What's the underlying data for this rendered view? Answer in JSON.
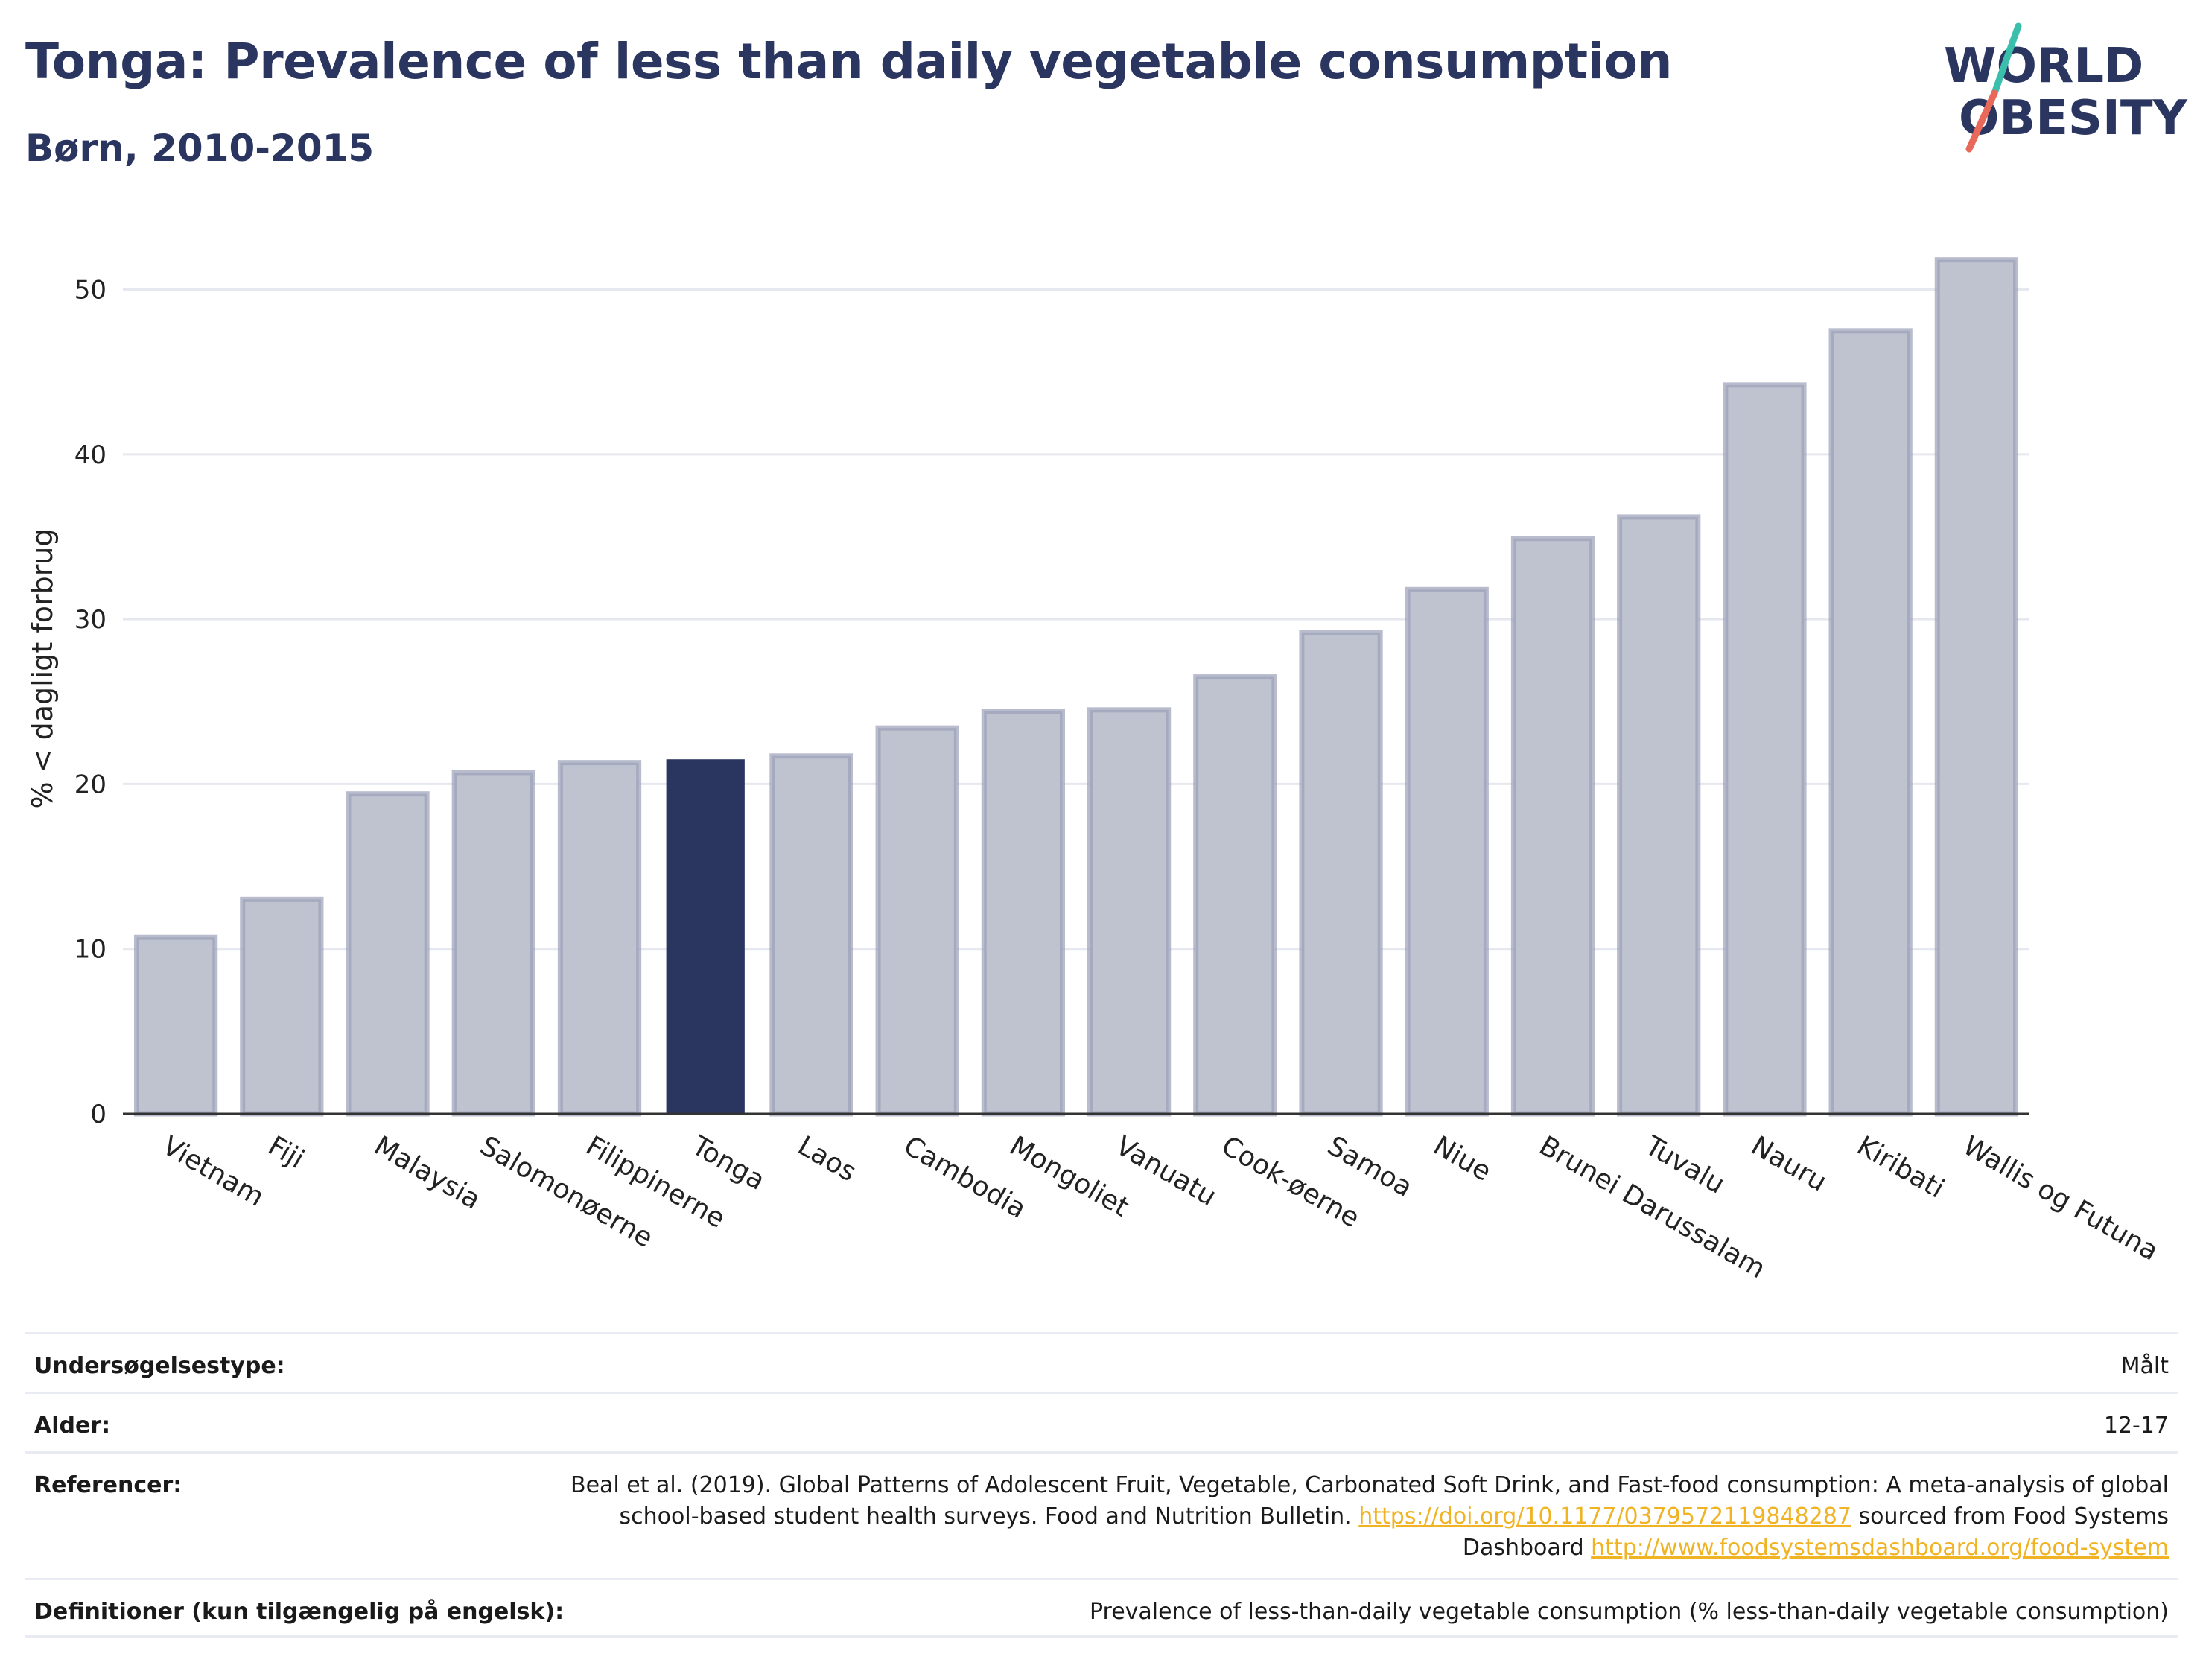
{
  "header": {
    "title": "Tonga: Prevalence of less than daily vegetable consumption",
    "subtitle": "Børn, 2010-2015"
  },
  "logo": {
    "line1": "WORLD",
    "line2": "OBESITY",
    "accent_colors": [
      "#3bbfad",
      "#e8685a"
    ]
  },
  "colors": {
    "bar": "#bfc3d0",
    "bar_stroke": "#9aa0b8",
    "highlight": "#2a3560",
    "grid": "#e6e8ef",
    "axis": "#333333"
  },
  "chart_data": {
    "type": "bar",
    "categories": [
      "Vietnam",
      "Fiji",
      "Malaysia",
      "Salomonøerne",
      "Filippinerne",
      "Tonga",
      "Laos",
      "Cambodia",
      "Mongoliet",
      "Vanuatu",
      "Cook-øerne",
      "Samoa",
      "Niue",
      "Brunei Darussalam",
      "Tuvalu",
      "Nauru",
      "Kiribati",
      "Wallis og Futuna"
    ],
    "values": [
      10.7,
      13.0,
      19.4,
      20.7,
      21.3,
      21.5,
      21.7,
      23.4,
      24.4,
      24.5,
      26.5,
      29.2,
      31.8,
      34.9,
      36.2,
      44.2,
      47.5,
      51.8
    ],
    "highlight": "Tonga",
    "ylabel": "% < dagligt forbrug",
    "xlabel": "",
    "ylim": [
      0,
      54
    ],
    "yticks": [
      0,
      10,
      20,
      30,
      40,
      50
    ],
    "grid": true
  },
  "table": {
    "rows": [
      {
        "label": "Undersøgelsestype:",
        "value": "Målt"
      },
      {
        "label": "Alder:",
        "value": "12-17"
      },
      {
        "label": "Referencer:",
        "value": "Beal et al. (2019). Global Patterns of Adolescent Fruit, Vegetable, Carbonated Soft Drink, and Fast-food consumption: A meta-analysis of global school-based student health surveys. Food and Nutrition Bulletin.",
        "link1": "https://doi.org/10.1177/0379572119848287",
        "mid": " sourced from Food Systems Dashboard ",
        "link2": "http://www.foodsystemsdashboard.org/food-system"
      },
      {
        "label": "Definitioner (kun tilgængelig på engelsk):",
        "value": "Prevalence of less-than-daily vegetable consumption (% less-than-daily vegetable consumption)"
      }
    ]
  }
}
